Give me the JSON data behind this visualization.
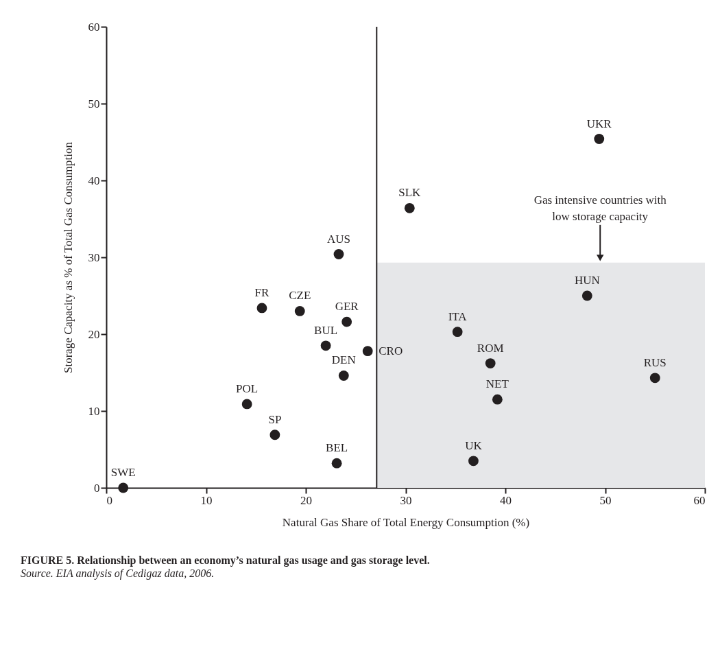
{
  "chart_data": {
    "type": "scatter",
    "title": "FIGURE 5. Relationship between an economy’s natural gas usage and gas storage level.",
    "xlabel": "Natural Gas Share of Total Energy Consumption (%)",
    "ylabel": "Storage Capacity as % of Total Gas Consumption",
    "x": [
      1.7,
      14.1,
      16.9,
      15.6,
      19.4,
      22.0,
      23.3,
      23.1,
      23.8,
      24.1,
      26.2,
      30.4,
      35.2,
      36.8,
      38.5,
      39.2,
      48.2,
      49.4,
      55.0
    ],
    "values": [
      0,
      10.9,
      6.9,
      23.4,
      23.0,
      18.5,
      30.4,
      3.2,
      14.6,
      21.6,
      17.8,
      36.4,
      20.3,
      3.5,
      16.2,
      11.5,
      25.0,
      45.4,
      14.3
    ],
    "color": "#231f20",
    "marker": "circle",
    "xlim": [
      0,
      60
    ],
    "ylim": [
      0,
      60
    ],
    "xticks": [
      0,
      10,
      20,
      30,
      40,
      50,
      60
    ],
    "yticks": [
      0,
      10,
      20,
      30,
      40,
      50,
      60
    ],
    "ref_lines": [
      {
        "axis": "x",
        "value": 27.1,
        "color": "#231f20"
      }
    ],
    "bands": [
      {
        "axis": "y",
        "from": 0,
        "to": 29.3,
        "color": "#e6e7e9"
      }
    ],
    "annotations": [
      {
        "text": "SWE",
        "x": 1.7,
        "y": 0
      },
      {
        "text": "POL",
        "x": 14.1,
        "y": 10.9
      },
      {
        "text": "SP",
        "x": 16.9,
        "y": 6.9
      },
      {
        "text": "FR",
        "x": 15.6,
        "y": 23.4
      },
      {
        "text": "CZE",
        "x": 19.4,
        "y": 23.0
      },
      {
        "text": "BUL",
        "x": 22.0,
        "y": 18.5
      },
      {
        "text": "AUS",
        "x": 23.3,
        "y": 30.4
      },
      {
        "text": "BEL",
        "x": 23.1,
        "y": 3.2
      },
      {
        "text": "DEN",
        "x": 23.8,
        "y": 14.6
      },
      {
        "text": "GER",
        "x": 24.1,
        "y": 21.6
      },
      {
        "text": "CRO",
        "x": 26.2,
        "y": 17.8
      },
      {
        "text": "SLK",
        "x": 30.4,
        "y": 36.4
      },
      {
        "text": "ITA",
        "x": 35.2,
        "y": 20.3
      },
      {
        "text": "UK",
        "x": 36.8,
        "y": 3.5
      },
      {
        "text": "ROM",
        "x": 38.5,
        "y": 16.2
      },
      {
        "text": "NET",
        "x": 39.2,
        "y": 11.5
      },
      {
        "text": "HUN",
        "x": 48.2,
        "y": 25.0
      },
      {
        "text": "UKR",
        "x": 49.4,
        "y": 45.4
      },
      {
        "text": "RUS",
        "x": 55.0,
        "y": 14.3
      },
      {
        "text": "Gas intensive countries with\nlow storage capacity",
        "x": 49.5,
        "y": 29.3
      },
      "Source. EIA analysis of Cedigaz data, 2006."
    ]
  }
}
